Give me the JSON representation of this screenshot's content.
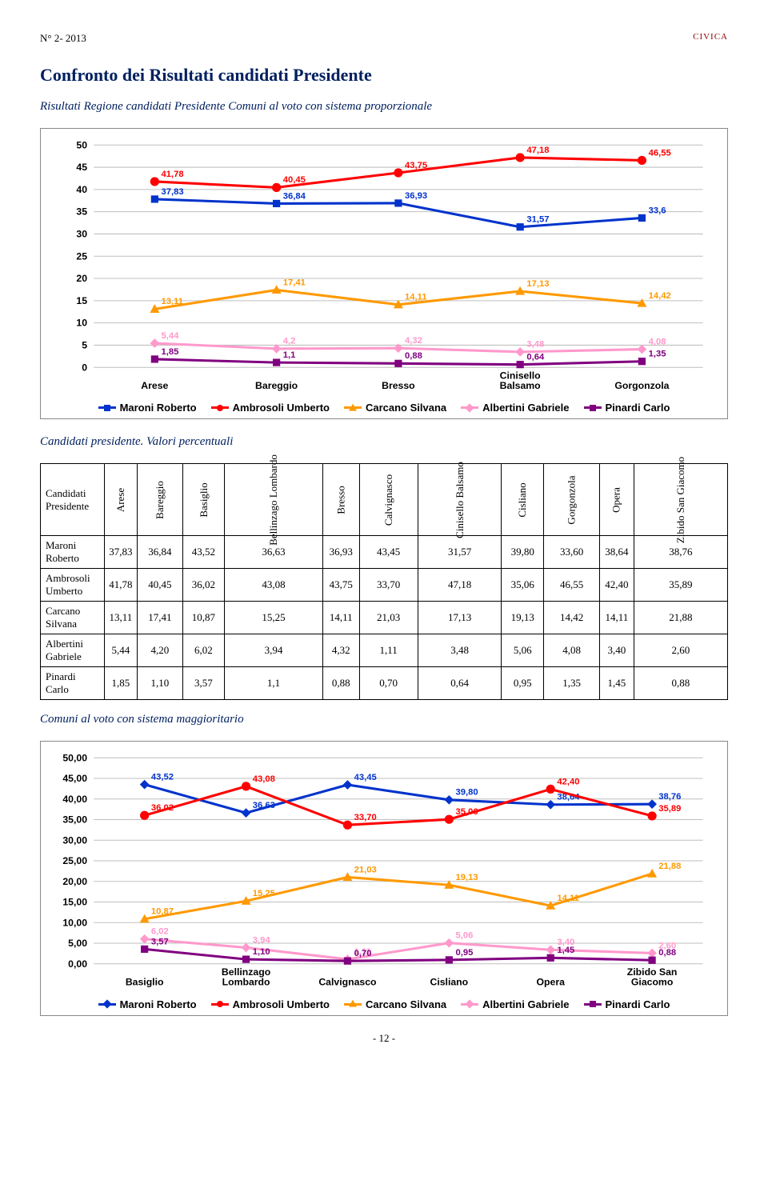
{
  "header": {
    "left": "N° 2- 2013",
    "right": "CIVICA"
  },
  "title": "Confronto dei Risultati candidati Presidente",
  "chart1": {
    "subtitle": "Risultati Regione candidati Presidente Comuni al voto con sistema proporzionale",
    "categories": [
      "Arese",
      "Bareggio",
      "Bresso",
      "Cinisello Balsamo",
      "Gorgonzola"
    ],
    "y_min": 0,
    "y_max": 50,
    "y_step": 5,
    "series": [
      {
        "name": "Maroni Roberto",
        "color": "#0033cc",
        "marker": "square",
        "values": [
          37.83,
          36.84,
          36.93,
          31.57,
          33.6
        ]
      },
      {
        "name": "Ambrosoli Umberto",
        "color": "#ff0000",
        "marker": "circle",
        "values": [
          41.78,
          40.45,
          43.75,
          47.18,
          46.55
        ]
      },
      {
        "name": "Carcano Silvana",
        "color": "#ff9900",
        "marker": "triangle",
        "values": [
          13.11,
          17.41,
          14.11,
          17.13,
          14.42
        ]
      },
      {
        "name": "Albertini Gabriele",
        "color": "#ff99cc",
        "marker": "diamond",
        "values": [
          5.44,
          4.2,
          4.32,
          3.48,
          4.08
        ]
      },
      {
        "name": "Pinardi Carlo",
        "color": "#800080",
        "marker": "square",
        "values": [
          1.85,
          1.1,
          0.88,
          0.64,
          1.35
        ]
      }
    ],
    "label_format": "comma"
  },
  "table_caption": "Candidati presidente. Valori percentuali",
  "table": {
    "corner_label": "Candidati Presidente",
    "columns": [
      "Arese",
      "Bareggio",
      "Basiglio",
      "Bellinzago Lombardo",
      "Bresso",
      "Calvignasco",
      "Cinisello Balsamo",
      "Cisliano",
      "Gorgonzola",
      "Opera",
      "Zibido San Giacomo"
    ],
    "rows": [
      {
        "name": "Maroni Roberto",
        "vals": [
          "37,83",
          "36,84",
          "43,52",
          "36,63",
          "36,93",
          "43,45",
          "31,57",
          "39,80",
          "33,60",
          "38,64",
          "38,76"
        ]
      },
      {
        "name": "Ambrosoli Umberto",
        "vals": [
          "41,78",
          "40,45",
          "36,02",
          "43,08",
          "43,75",
          "33,70",
          "47,18",
          "35,06",
          "46,55",
          "42,40",
          "35,89"
        ]
      },
      {
        "name": "Carcano Silvana",
        "vals": [
          "13,11",
          "17,41",
          "10,87",
          "15,25",
          "14,11",
          "21,03",
          "17,13",
          "19,13",
          "14,42",
          "14,11",
          "21,88"
        ]
      },
      {
        "name": "Albertini Gabriele",
        "vals": [
          "5,44",
          "4,20",
          "6,02",
          "3,94",
          "4,32",
          "1,11",
          "3,48",
          "5,06",
          "4,08",
          "3,40",
          "2,60"
        ]
      },
      {
        "name": "Pinardi Carlo",
        "vals": [
          "1,85",
          "1,10",
          "3,57",
          "1,1",
          "0,88",
          "0,70",
          "0,64",
          "0,95",
          "1,35",
          "1,45",
          "0,88"
        ]
      }
    ]
  },
  "chart2": {
    "subtitle": "Comuni al voto con sistema maggioritario",
    "categories": [
      "Basiglio",
      "Bellinzago Lombardo",
      "Calvignasco",
      "Cisliano",
      "Opera",
      "Zibido San Giacomo"
    ],
    "y_min": 0,
    "y_max": 50,
    "y_step": 5,
    "series": [
      {
        "name": "Maroni Roberto",
        "color": "#0033cc",
        "marker": "diamond",
        "values": [
          43.52,
          36.63,
          43.45,
          39.8,
          38.64,
          38.76
        ]
      },
      {
        "name": "Ambrosoli Umberto",
        "color": "#ff0000",
        "marker": "circle",
        "values": [
          36.02,
          43.08,
          33.7,
          35.06,
          42.4,
          35.89
        ]
      },
      {
        "name": "Carcano Silvana",
        "color": "#ff9900",
        "marker": "triangle",
        "values": [
          10.87,
          15.25,
          21.03,
          19.13,
          14.11,
          21.88
        ]
      },
      {
        "name": "Albertini Gabriele",
        "color": "#ff99cc",
        "marker": "diamond",
        "values": [
          6.02,
          3.94,
          1.11,
          5.06,
          3.4,
          2.6
        ]
      },
      {
        "name": "Pinardi Carlo",
        "color": "#800080",
        "marker": "square",
        "values": [
          3.57,
          1.1,
          0.7,
          0.95,
          1.45,
          0.88
        ]
      }
    ],
    "label_format": "comma2"
  },
  "page_number": "- 12 -"
}
